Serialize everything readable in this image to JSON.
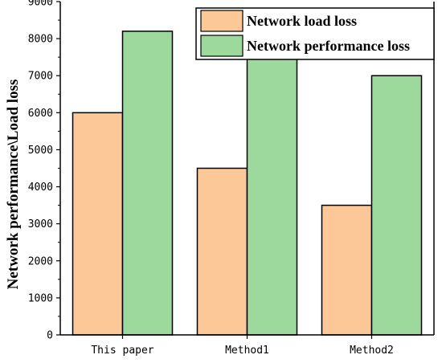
{
  "chart_data": {
    "type": "bar",
    "title": "",
    "xlabel": "",
    "ylabel": "Network performance\\Load loss",
    "categories": [
      "This paper",
      "Method1",
      "Method2"
    ],
    "series": [
      {
        "name": "Network load loss",
        "values": [
          6000,
          4500,
          3500
        ],
        "color": "#fcc898"
      },
      {
        "name": "Network performance loss",
        "values": [
          8200,
          8000,
          7000
        ],
        "color": "#9dd89d"
      }
    ],
    "ylim": [
      0,
      9000
    ],
    "yticks": [
      0,
      1000,
      2000,
      3000,
      4000,
      5000,
      6000,
      7000,
      8000,
      9000
    ],
    "grid": false,
    "legend_position": "top-right"
  }
}
